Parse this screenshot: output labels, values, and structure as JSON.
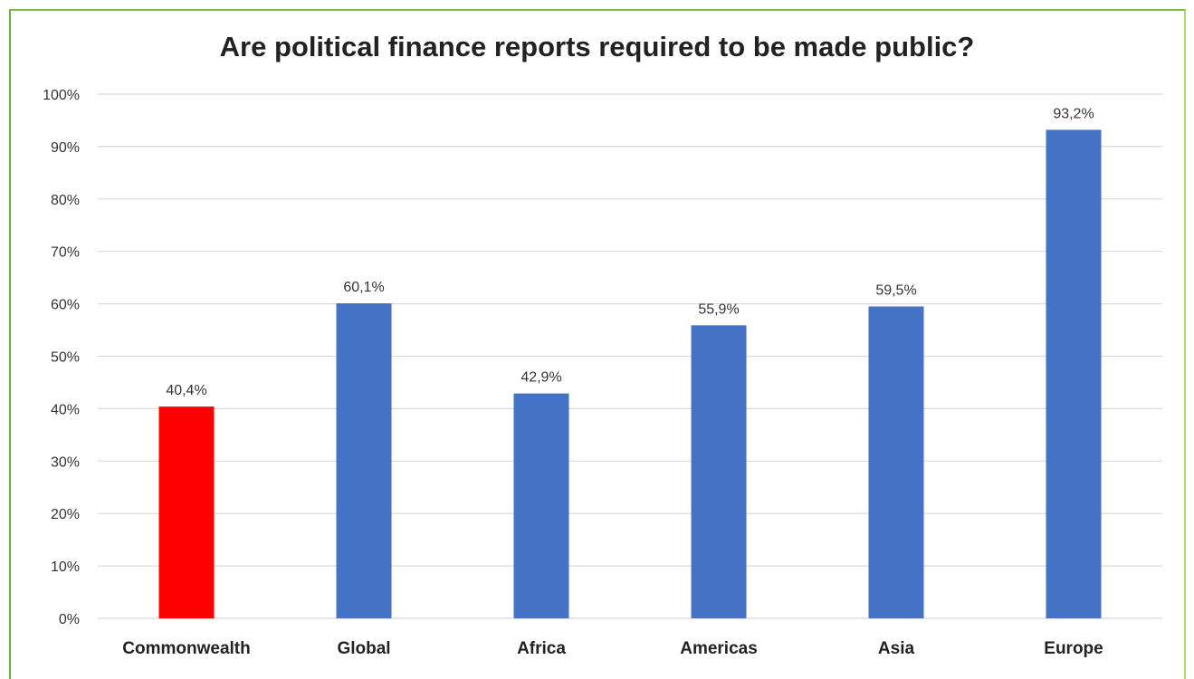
{
  "chart_data": {
    "type": "bar",
    "title": "Are political finance reports required to be made public?",
    "xlabel": "",
    "ylabel": "",
    "categories": [
      "Commonwealth",
      "Global",
      "Africa",
      "Americas",
      "Asia",
      "Europe"
    ],
    "values": [
      40.4,
      60.1,
      42.9,
      55.9,
      59.5,
      93.2
    ],
    "data_labels": [
      "40,4%",
      "60,1%",
      "42,9%",
      "55,9%",
      "59,5%",
      "93,2%"
    ],
    "bar_colors": [
      "#ff0000",
      "#4472c4",
      "#4472c4",
      "#4472c4",
      "#4472c4",
      "#4472c4"
    ],
    "ylim": [
      0,
      100
    ],
    "yticks": [
      0,
      10,
      20,
      30,
      40,
      50,
      60,
      70,
      80,
      90,
      100
    ],
    "ytick_labels": [
      "0%",
      "10%",
      "20%",
      "30%",
      "40%",
      "50%",
      "60%",
      "70%",
      "80%",
      "90%",
      "100%"
    ],
    "grid": true,
    "gridline_color": "#d9d9d9",
    "frame_color": "#8bc34a"
  }
}
